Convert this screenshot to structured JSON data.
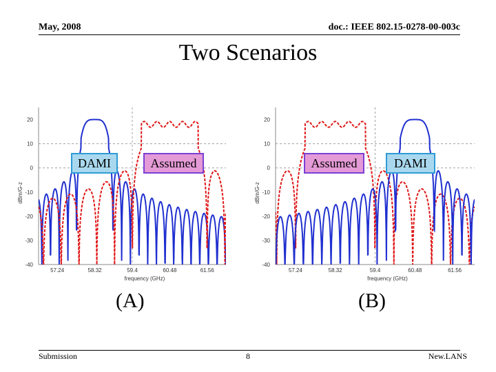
{
  "header": {
    "date": "May, 2008",
    "doc_id": "doc.: IEEE 802.15-0278-00-003c"
  },
  "title": "Two Scenarios",
  "footer": {
    "left": "Submission",
    "page": "8",
    "right": "New.LANS"
  },
  "colors": {
    "dami": "#1f2fd0",
    "assumed": "#e01818",
    "grid": "#a0a0a0"
  },
  "chart_data": [
    {
      "type": "line",
      "caption": "(A)",
      "xlabel": "frequency (GHz)",
      "ylabel": "dBm/G-z",
      "xticks": [
        "57.24",
        "58.32",
        "59.4",
        "60.48",
        "61.56"
      ],
      "yticks": [
        "20",
        "10",
        "0",
        "-10",
        "-20",
        "-30",
        "-40"
      ],
      "ylim": [
        -40,
        25
      ],
      "labels": [
        {
          "role": "dami",
          "text": "DAMI"
        },
        {
          "role": "assumed",
          "text": "Assumed"
        }
      ],
      "series": [
        {
          "role": "dami",
          "style": "solid",
          "center": 58.32,
          "half_width": 0.4,
          "peak": 20
        },
        {
          "role": "assumed",
          "style": "dashed",
          "center": 60.48,
          "half_width": 0.82,
          "peak": 20
        }
      ]
    },
    {
      "type": "line",
      "caption": "(B)",
      "xlabel": "frequency (GHz)",
      "ylabel": "dBm/G-z",
      "xticks": [
        "57.24",
        "58.32",
        "59.4",
        "60.48",
        "61.56"
      ],
      "yticks": [
        "20",
        "10",
        "0",
        "-10",
        "-20",
        "-30",
        "-40"
      ],
      "ylim": [
        -40,
        25
      ],
      "labels": [
        {
          "role": "assumed",
          "text": "Assumed"
        },
        {
          "role": "dami",
          "text": "DAMI"
        }
      ],
      "series": [
        {
          "role": "assumed",
          "style": "dashed",
          "center": 58.32,
          "half_width": 0.82,
          "peak": 20
        },
        {
          "role": "dami",
          "style": "solid",
          "center": 60.48,
          "half_width": 0.4,
          "peak": 20
        }
      ]
    }
  ]
}
